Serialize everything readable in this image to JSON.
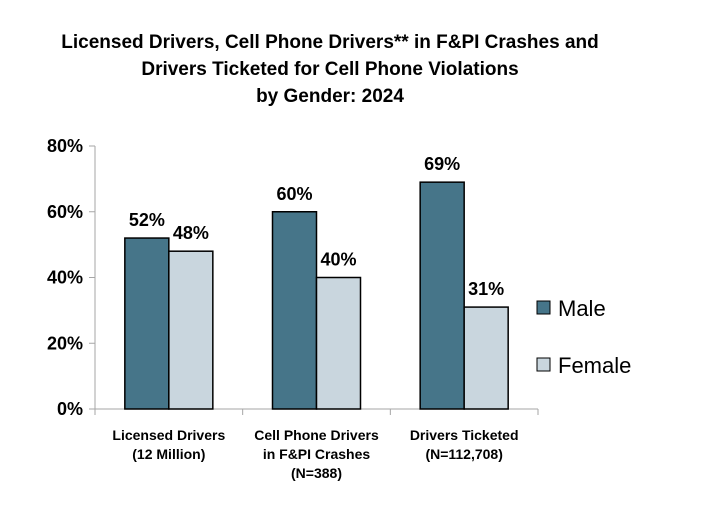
{
  "chart_data": {
    "type": "bar",
    "title": [
      "Licensed Drivers, Cell Phone Drivers** in F&PI Crashes and",
      "Drivers Ticketed for Cell Phone Violations",
      "by Gender: 2024"
    ],
    "categories": [
      [
        "Licensed Drivers",
        "(12 Million)"
      ],
      [
        "Cell Phone Drivers",
        "in F&PI Crashes",
        "(N=388)"
      ],
      [
        "Drivers Ticketed",
        "(N=112,708)"
      ]
    ],
    "series": [
      {
        "name": "Male",
        "values": [
          52,
          60,
          69
        ],
        "color": "#467589"
      },
      {
        "name": "Female",
        "values": [
          48,
          40,
          31
        ],
        "color": "#c9d6de"
      }
    ],
    "data_labels": [
      [
        "52%",
        "60%",
        "69%"
      ],
      [
        "48%",
        "40%",
        "31%"
      ]
    ],
    "yticks": [
      "0%",
      "20%",
      "40%",
      "60%",
      "80%"
    ],
    "ylim": [
      0,
      80
    ],
    "unit": "%",
    "grid": false,
    "legend_position": "right"
  }
}
